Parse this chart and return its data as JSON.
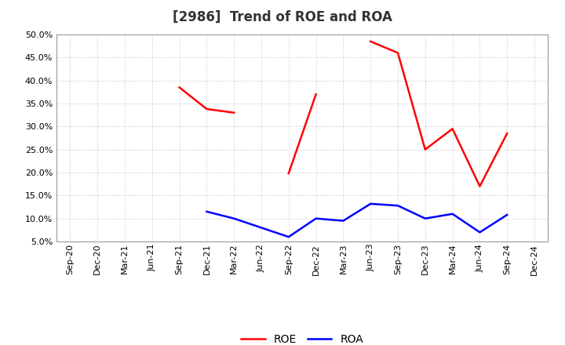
{
  "title": "[2986]  Trend of ROE and ROA",
  "x_labels": [
    "Sep-20",
    "Dec-20",
    "Mar-21",
    "Jun-21",
    "Sep-21",
    "Dec-21",
    "Mar-22",
    "Jun-22",
    "Sep-22",
    "Dec-22",
    "Mar-23",
    "Jun-23",
    "Sep-23",
    "Dec-23",
    "Mar-24",
    "Jun-24",
    "Sep-24",
    "Dec-24"
  ],
  "roe_values": [
    null,
    null,
    null,
    null,
    38.5,
    33.8,
    33.0,
    null,
    19.8,
    37.0,
    null,
    48.5,
    46.0,
    25.0,
    29.5,
    17.0,
    28.5,
    null
  ],
  "roa_values": [
    null,
    null,
    null,
    null,
    null,
    11.5,
    10.0,
    8.0,
    6.0,
    10.0,
    9.5,
    13.2,
    12.8,
    10.0,
    11.0,
    7.0,
    10.8,
    null
  ],
  "roe_color": "#ff0000",
  "roa_color": "#0000ff",
  "ylim_min": 5.0,
  "ylim_max": 50.0,
  "yticks": [
    5.0,
    10.0,
    15.0,
    20.0,
    25.0,
    30.0,
    35.0,
    40.0,
    45.0,
    50.0
  ],
  "background_color": "#ffffff",
  "grid_color": "#aaaaaa",
  "title_fontsize": 12,
  "legend_fontsize": 10,
  "tick_fontsize": 8,
  "linewidth": 1.8
}
